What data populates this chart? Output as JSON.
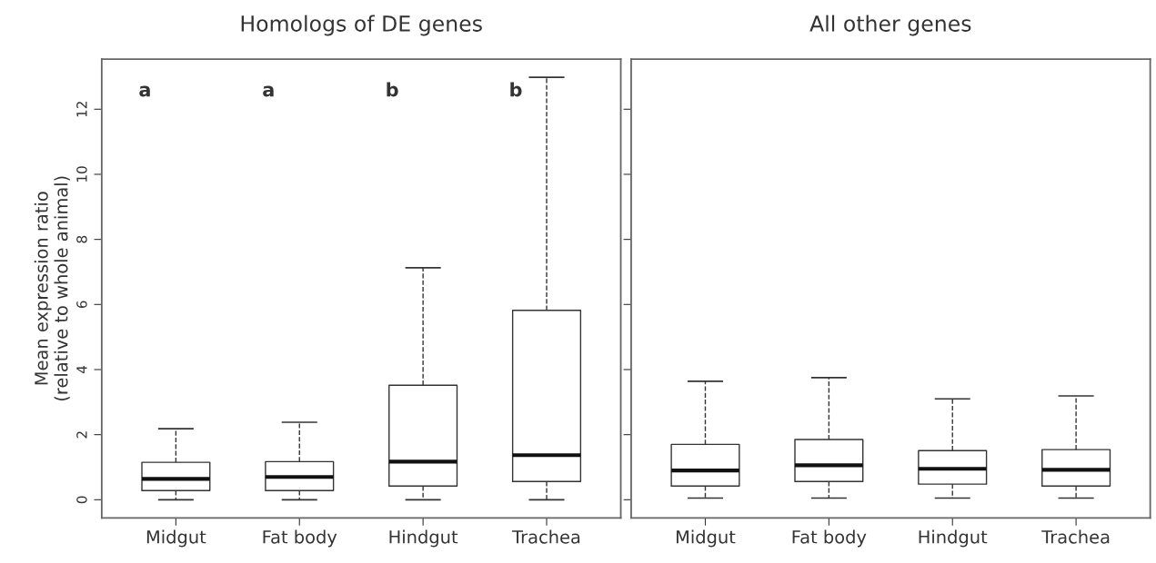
{
  "chart_data": [
    {
      "type": "box",
      "title": "Homologs of DE genes",
      "ylabel": "Mean expression ratio\n(relative to whole animal)",
      "categories": [
        "Midgut",
        "Fat body",
        "Hindgut",
        "Trachea"
      ],
      "boxes": [
        {
          "low": 0,
          "q1": 0.28,
          "median": 0.64,
          "q3": 1.15,
          "high": 2.18
        },
        {
          "low": 0,
          "q1": 0.28,
          "median": 0.7,
          "q3": 1.17,
          "high": 2.38
        },
        {
          "low": 0,
          "q1": 0.42,
          "median": 1.17,
          "q3": 3.52,
          "high": 7.13
        },
        {
          "low": 0,
          "q1": 0.56,
          "median": 1.37,
          "q3": 5.82,
          "high": 12.98
        }
      ],
      "annotations": [
        "a",
        "a",
        "b",
        "b"
      ],
      "ylim": [
        -0.56,
        13.54
      ],
      "yticks": [
        0,
        2,
        4,
        6,
        8,
        10,
        12
      ],
      "grid": false
    },
    {
      "type": "box",
      "title": "All other genes",
      "categories": [
        "Midgut",
        "Fat body",
        "Hindgut",
        "Trachea"
      ],
      "boxes": [
        {
          "low": 0.05,
          "q1": 0.42,
          "median": 0.9,
          "q3": 1.7,
          "high": 3.64
        },
        {
          "low": 0.05,
          "q1": 0.56,
          "median": 1.06,
          "q3": 1.85,
          "high": 3.75
        },
        {
          "low": 0.05,
          "q1": 0.48,
          "median": 0.95,
          "q3": 1.51,
          "high": 3.1
        },
        {
          "low": 0.05,
          "q1": 0.42,
          "median": 0.92,
          "q3": 1.54,
          "high": 3.19
        }
      ],
      "ylim": [
        -0.56,
        13.54
      ],
      "yticks": [
        0,
        2,
        4,
        6,
        8,
        10,
        12
      ],
      "tick_labels": "x",
      "grid": false
    }
  ]
}
